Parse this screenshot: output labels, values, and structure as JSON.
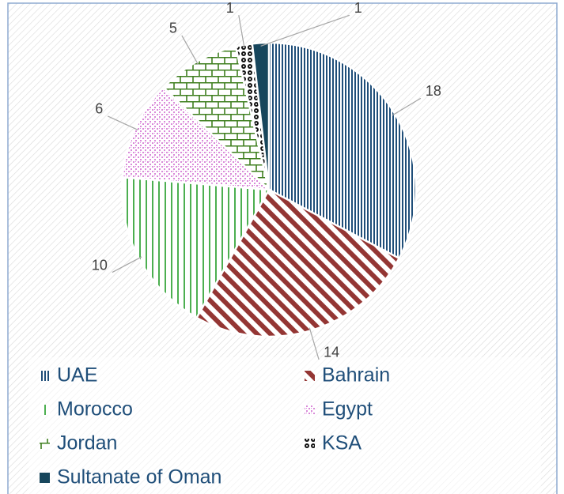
{
  "chart_data": {
    "type": "pie",
    "categories": [
      "UAE",
      "Bahrain",
      "Morocco",
      "Egypt",
      "Jordan",
      "KSA",
      "Sultanate of Oman"
    ],
    "values": [
      18,
      14,
      10,
      6,
      5,
      1,
      1
    ],
    "colors": [
      "#1f4e79",
      "#943634",
      "#4caf50",
      "#d98ad9",
      "#3f7f1f",
      "#111111",
      "#17465c"
    ],
    "legend": "bottom"
  }
}
